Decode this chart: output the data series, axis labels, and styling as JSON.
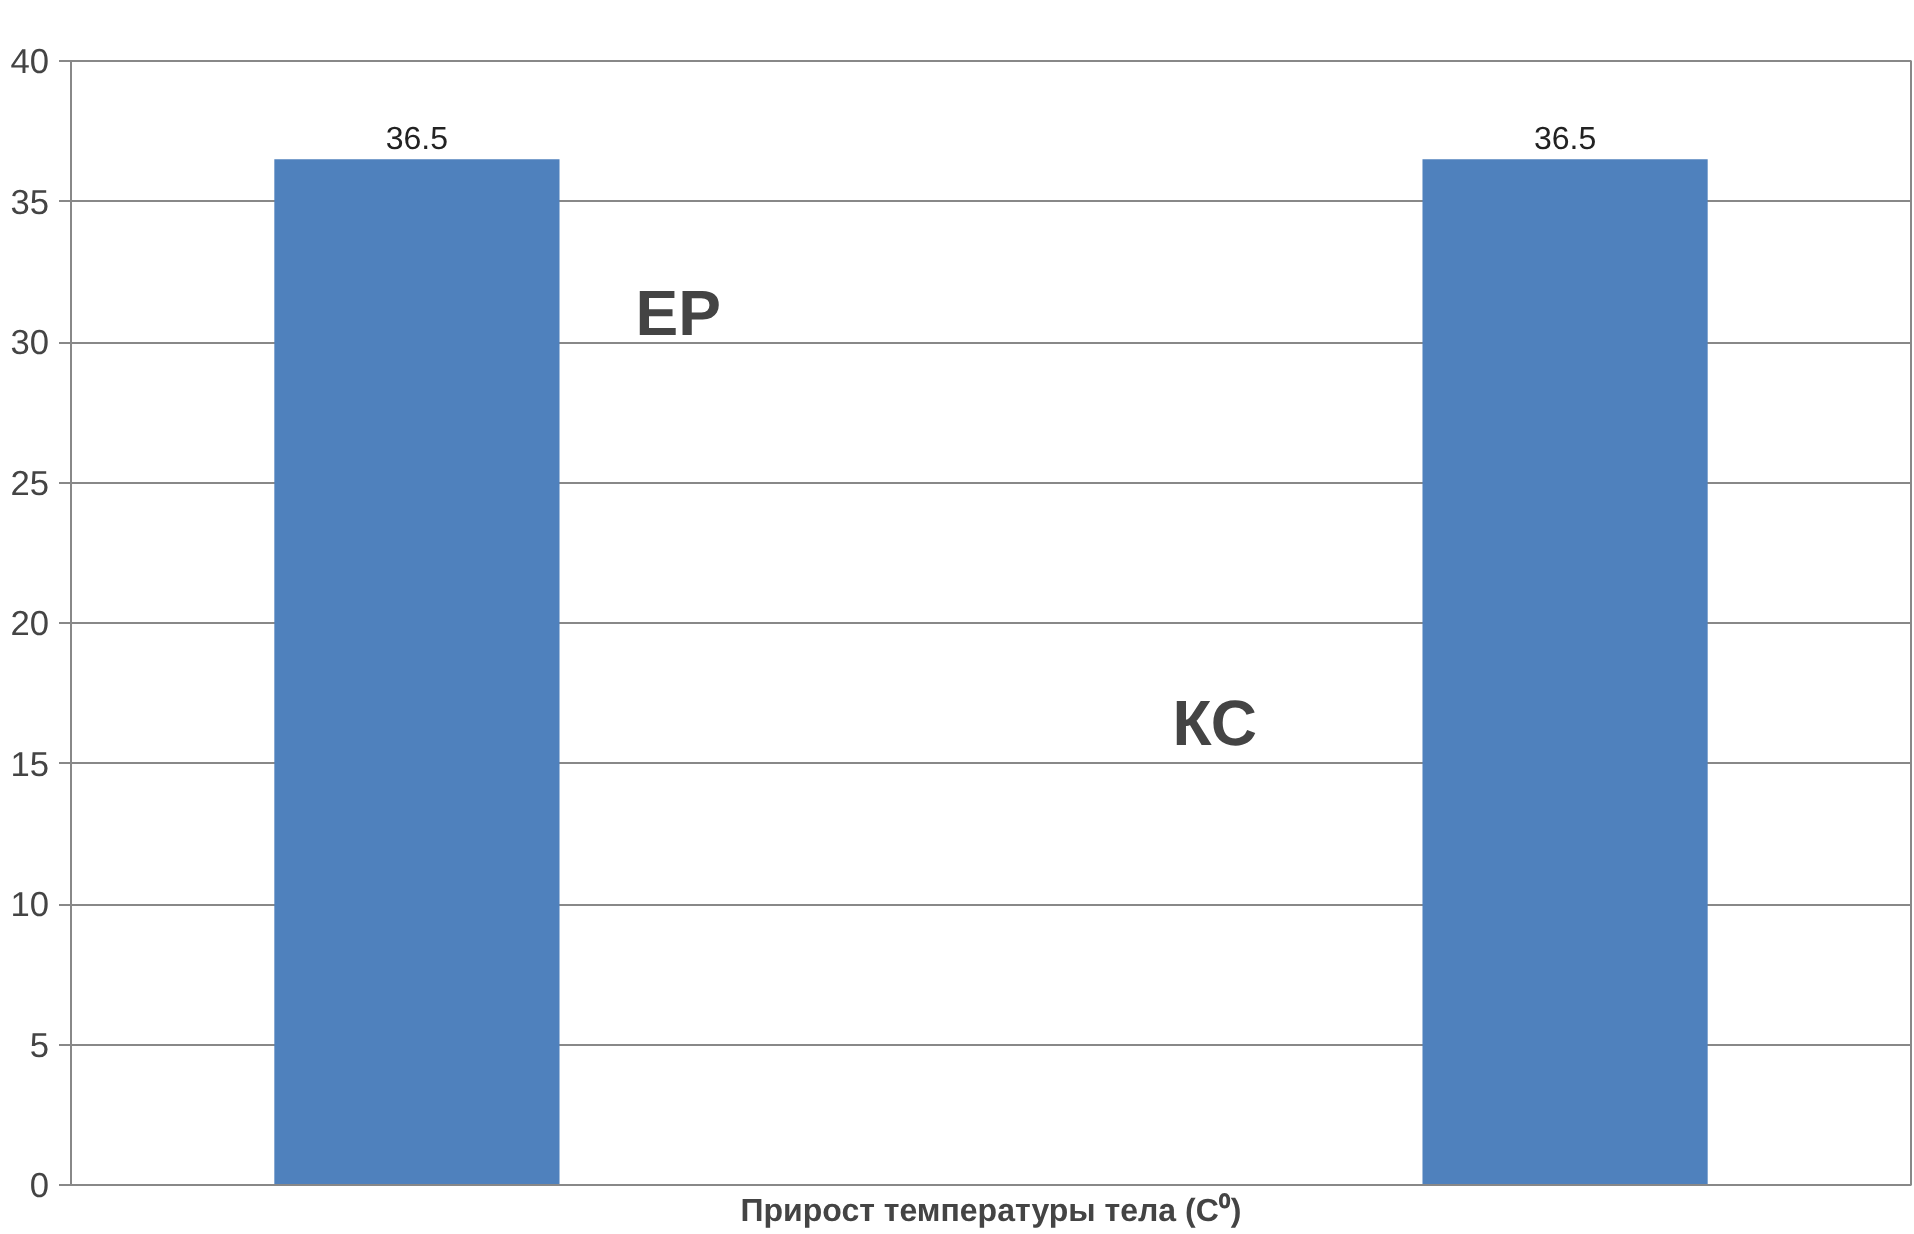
{
  "chart_data": {
    "type": "bar",
    "xlabel": "Прирост температуры тела (C⁰)",
    "categories": [
      null
    ],
    "series": [
      {
        "name": "ЕР",
        "color": "#4f81bd",
        "values": [
          36.5
        ]
      },
      {
        "name": "КС",
        "color": "#4f81bd",
        "values": [
          36.5
        ]
      }
    ],
    "ylim": [
      0,
      40
    ],
    "yticks": [
      0,
      5,
      10,
      15,
      20,
      25,
      30,
      35,
      40
    ],
    "grid": "y",
    "data_labels": true
  }
}
